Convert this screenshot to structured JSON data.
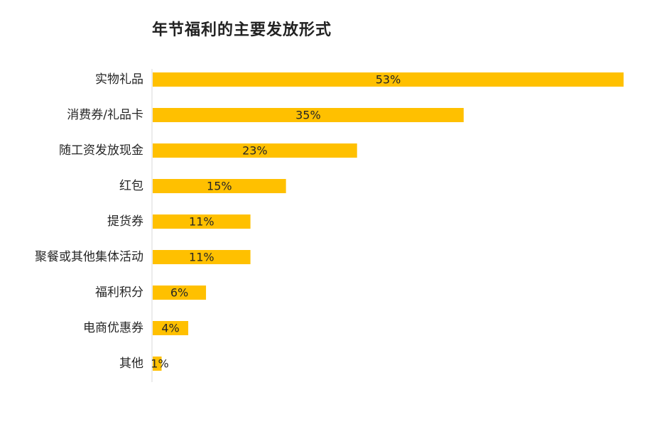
{
  "chart_data": {
    "type": "bar",
    "orientation": "horizontal",
    "title": "年节福利的主要发放形式",
    "categories": [
      "实物礼品",
      "消费券/礼品卡",
      "随工资发放现金",
      "红包",
      "提货券",
      "聚餐或其他集体活动",
      "福利积分",
      "电商优惠券",
      "其他"
    ],
    "values": [
      53,
      35,
      23,
      15,
      11,
      11,
      6,
      4,
      1
    ],
    "value_labels": [
      "53%",
      "35%",
      "23%",
      "15%",
      "11%",
      "11%",
      "6%",
      "4%",
      "1%"
    ],
    "unit": "%",
    "xlim": [
      0,
      53
    ],
    "grid": false,
    "legend": "none",
    "bar_color": "#FFC000",
    "axis_color": "#D9D9D9",
    "label_color": "#262626"
  }
}
